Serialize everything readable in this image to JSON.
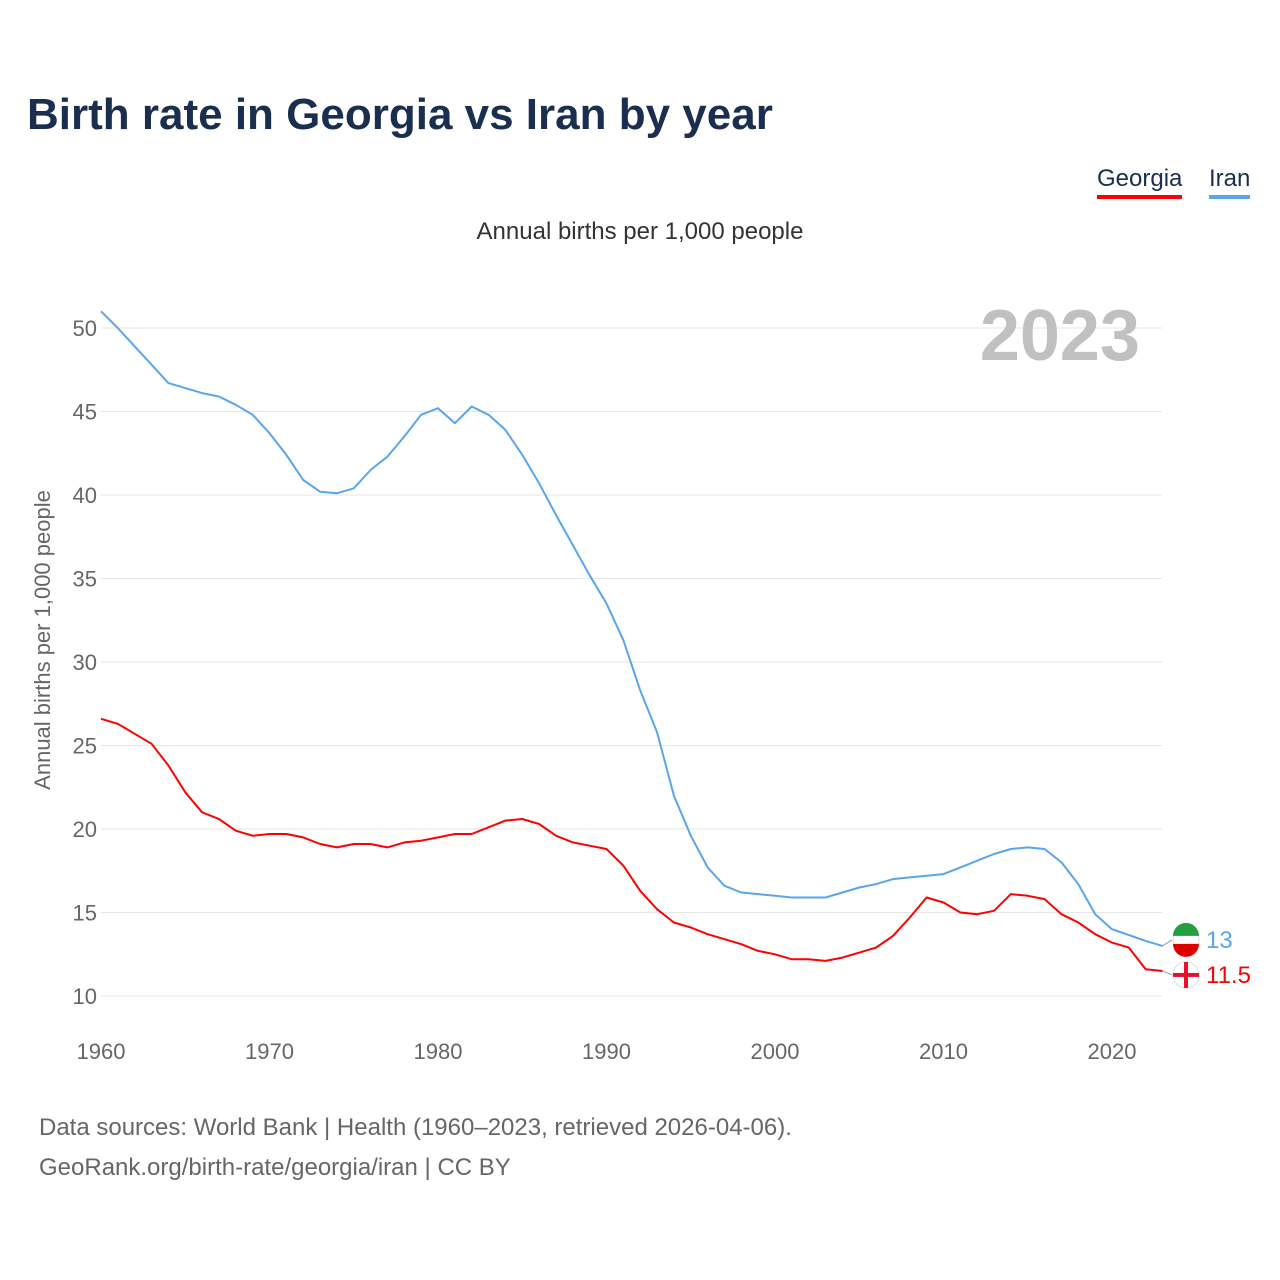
{
  "title": "Birth rate in Georgia vs Iran by year",
  "subtitle": "Annual births per 1,000 people",
  "legend": [
    "Georgia",
    "Iran"
  ],
  "source_line1": "Data sources: World Bank | Health (1960–2023, retrieved 2026-04-06).",
  "source_line2": "GeoRank.org/birth-rate/georgia/iran | CC BY",
  "chart_data": {
    "type": "line",
    "title": "Birth rate in Georgia vs Iran by year",
    "ylabel": "Annual births per 1,000 people",
    "xlabel": "",
    "year_label": "2023",
    "xlim": [
      1960,
      2023
    ],
    "ylim": [
      10,
      50
    ],
    "x_ticks": [
      1960,
      1970,
      1980,
      1990,
      2000,
      2010,
      2020
    ],
    "y_ticks": [
      10,
      15,
      20,
      25,
      30,
      35,
      40,
      45,
      50
    ],
    "grid": true,
    "legend_position": "top-right",
    "x_start": 1960,
    "series": [
      {
        "name": "Georgia",
        "color": "#ff0000",
        "end_label": "11.5",
        "values": [
          26.6,
          26.3,
          25.7,
          25.1,
          23.8,
          22.2,
          21.0,
          20.6,
          19.9,
          19.6,
          19.7,
          19.7,
          19.5,
          19.1,
          18.9,
          19.1,
          19.1,
          18.9,
          19.2,
          19.3,
          19.5,
          19.7,
          19.7,
          20.1,
          20.5,
          20.6,
          20.3,
          19.6,
          19.2,
          19.0,
          18.8,
          17.8,
          16.3,
          15.2,
          14.4,
          14.1,
          13.7,
          13.4,
          13.1,
          12.7,
          12.5,
          12.2,
          12.2,
          12.1,
          12.3,
          12.6,
          12.9,
          13.6,
          14.7,
          15.9,
          15.6,
          15.0,
          14.9,
          15.1,
          16.1,
          16.0,
          15.8,
          14.9,
          14.4,
          13.7,
          13.2,
          12.9,
          11.6,
          11.5
        ]
      },
      {
        "name": "Iran",
        "color": "#5aa5ea",
        "end_label": "13",
        "values": [
          51.0,
          50.0,
          48.9,
          47.8,
          46.7,
          46.4,
          46.1,
          45.9,
          45.4,
          44.8,
          43.7,
          42.4,
          40.9,
          40.2,
          40.1,
          40.4,
          41.5,
          42.3,
          43.5,
          44.8,
          45.2,
          44.3,
          45.3,
          44.8,
          43.9,
          42.4,
          40.7,
          38.8,
          37.0,
          35.2,
          33.5,
          31.3,
          28.3,
          25.8,
          22.0,
          19.6,
          17.7,
          16.6,
          16.2,
          16.1,
          16.0,
          15.9,
          15.9,
          15.9,
          16.2,
          16.5,
          16.7,
          17.0,
          17.1,
          17.2,
          17.3,
          17.7,
          18.1,
          18.5,
          18.8,
          18.9,
          18.8,
          18.0,
          16.7,
          14.9,
          14.0,
          13.65,
          13.3,
          13.0
        ]
      }
    ]
  }
}
